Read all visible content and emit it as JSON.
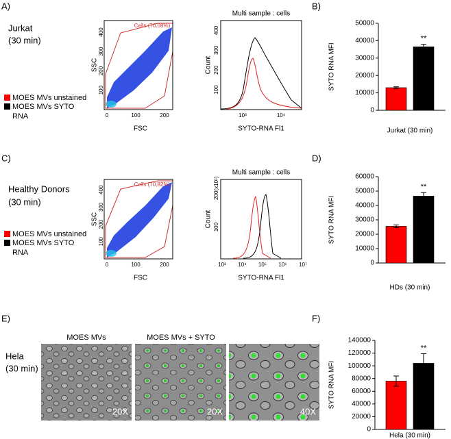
{
  "panels": {
    "labels": [
      "A)",
      "B)",
      "C)",
      "D)",
      "E)",
      "F)"
    ],
    "samples": [
      {
        "name": "Jurkat",
        "time": "(30 min)"
      },
      {
        "name": "Healthy Donors",
        "time": "(30 min)"
      },
      {
        "name": "Hela",
        "time": "(30 min)"
      }
    ]
  },
  "legend_wrap": "RNA",
  "flow": [
    {
      "gate": "Cells (70,08%)",
      "y_label": "SSC",
      "x_label": "FSC",
      "xticks": [
        "0",
        "100",
        "200"
      ],
      "yticks": [
        "100",
        "200",
        "300",
        "400"
      ],
      "hist_title": "Multi sample : cells",
      "hist_y_label": "Count",
      "hist_x_label": "SYTO-RNA Fl1",
      "hist_xticks": [
        "10³",
        "10⁴"
      ],
      "hist_yticks": [
        "100",
        "200",
        "300",
        "400"
      ]
    },
    {
      "gate": "Cells (70,82%)",
      "y_label": "SSC",
      "x_label": "FSC",
      "xticks": [
        "0",
        "100",
        "200"
      ],
      "yticks": [
        "100",
        "200",
        "300",
        "400"
      ],
      "hist_title": "Multi sample : cells",
      "hist_y_label": "Count",
      "hist_x_label": "SYTO-RNA Fl1",
      "hist_xticks": [
        "10³",
        "10⁴",
        "10⁵",
        "10⁶",
        "10⁷"
      ],
      "hist_yticks": [
        "100",
        "200"
      ],
      "hist_scale": "(x10¹)"
    }
  ],
  "microscopy": {
    "titles": [
      "MOES MVs",
      "MOES MVs + SYTO"
    ],
    "magnifications": [
      "20X",
      "20X",
      "40X"
    ]
  },
  "chart_data": [
    {
      "type": "bar",
      "categories": [
        "Jurkat (30 min)"
      ],
      "y_label": "SYTO RNA MFI",
      "ylim": [
        0,
        50000
      ],
      "yticks": [
        0,
        10000,
        20000,
        30000,
        40000,
        50000
      ],
      "annotation": "**",
      "series": [
        {
          "name": "MOES MVs unstained",
          "color": "#ff0000",
          "values": [
            13000
          ],
          "errors": [
            500
          ]
        },
        {
          "name": "MOES MVs SYTO",
          "color": "#000000",
          "values": [
            36500
          ],
          "errors": [
            1500
          ]
        }
      ]
    },
    {
      "type": "bar",
      "categories": [
        "HDs (30 min)"
      ],
      "y_label": "SYTO RNA MFI",
      "ylim": [
        0,
        60000
      ],
      "yticks": [
        0,
        10000,
        20000,
        30000,
        40000,
        50000,
        60000
      ],
      "annotation": "**",
      "series": [
        {
          "name": "MOES MVs unstained",
          "color": "#ff0000",
          "values": [
            25500
          ],
          "errors": [
            1000
          ]
        },
        {
          "name": "MOES MVs SYTO",
          "color": "#000000",
          "values": [
            46500
          ],
          "errors": [
            2500
          ]
        }
      ]
    },
    {
      "type": "bar",
      "categories": [
        "Hela (30 min)"
      ],
      "y_label": "SYTO RNA MFI",
      "ylim": [
        0,
        140000
      ],
      "yticks": [
        0,
        20000,
        40000,
        60000,
        80000,
        100000,
        120000,
        140000
      ],
      "annotation": "**",
      "series": [
        {
          "color": "#ff0000",
          "values": [
            76000
          ],
          "errors": [
            8000
          ]
        },
        {
          "color": "#000000",
          "values": [
            104000
          ],
          "errors": [
            15000
          ]
        }
      ]
    }
  ]
}
